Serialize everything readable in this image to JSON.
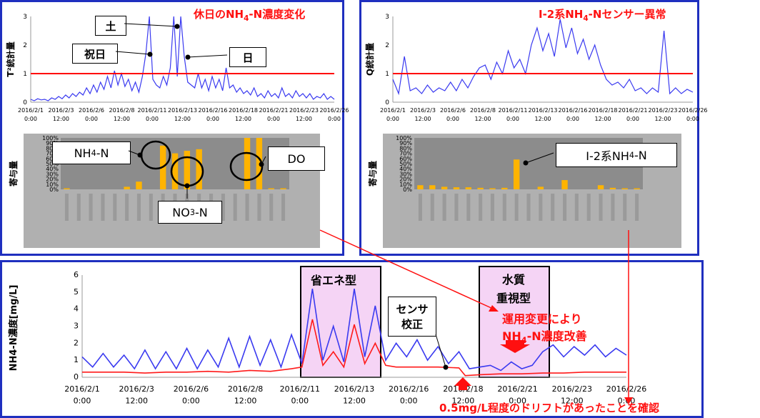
{
  "chart_data": [
    {
      "type": "line",
      "title": "休日のNH4-N濃度変化",
      "ylabel": "T²統計量",
      "ylim": [
        0,
        3
      ],
      "yticks": [
        "0",
        "1",
        "2",
        "3"
      ],
      "x_ticks": [
        "2016/2/1 0:00",
        "2016/2/3 12:00",
        "2016/2/6 0:00",
        "2016/2/8 12:00",
        "2016/2/11 0:00",
        "2016/2/13 12:00",
        "2016/2/16 0:00",
        "2016/2/18 12:00",
        "2016/2/21 0:00",
        "2016/2/23 12:00",
        "2016/2/26 0:00"
      ],
      "threshold": 1,
      "series_color": "#3a3af0",
      "threshold_color": "#ff0000",
      "x": [
        0,
        0.3,
        0.6,
        0.9,
        1.2,
        1.5,
        1.8,
        2.1,
        2.4,
        2.7,
        3.0,
        3.3,
        3.6,
        3.9,
        4.2,
        4.5,
        4.8,
        5.1,
        5.4,
        5.7,
        6.0,
        6.3,
        6.6,
        6.9,
        7.2,
        7.5,
        7.8,
        8.1,
        8.4,
        8.7,
        9.0,
        9.3,
        9.6,
        9.9,
        10.2,
        10.5,
        10.8,
        11.1,
        11.4,
        11.7,
        12.0,
        12.3,
        12.6,
        12.9,
        13.2,
        13.5,
        13.8,
        14.1,
        14.4,
        14.7,
        15.0,
        15.3,
        15.6,
        15.9,
        16.2,
        16.5,
        16.8,
        17.1,
        17.4,
        17.7,
        18.0,
        18.3,
        18.6,
        18.9,
        19.2,
        19.5,
        19.8,
        20.1,
        20.4,
        20.7,
        21.0,
        21.3,
        21.6,
        21.9,
        22.2,
        22.5,
        22.8,
        23.1,
        23.4,
        23.7,
        24.0,
        24.3,
        24.6,
        24.9,
        25.2,
        25.5,
        25.8,
        26.1
      ],
      "values": [
        0.1,
        0.05,
        0.12,
        0.08,
        0.1,
        0.05,
        0.15,
        0.1,
        0.2,
        0.12,
        0.25,
        0.15,
        0.3,
        0.2,
        0.35,
        0.25,
        0.5,
        0.3,
        0.6,
        0.35,
        0.7,
        0.45,
        0.9,
        0.5,
        1.1,
        0.6,
        1.0,
        0.55,
        0.8,
        0.4,
        0.7,
        0.35,
        0.9,
        1.7,
        3.0,
        0.8,
        0.6,
        0.5,
        0.9,
        0.6,
        1.2,
        3.0,
        0.9,
        3.0,
        1.6,
        0.7,
        0.6,
        0.5,
        1.0,
        0.5,
        0.8,
        0.4,
        0.9,
        0.5,
        0.8,
        0.4,
        1.2,
        0.5,
        0.6,
        0.35,
        0.5,
        0.3,
        0.4,
        0.25,
        0.5,
        0.2,
        0.3,
        0.15,
        0.4,
        0.2,
        0.3,
        0.15,
        0.5,
        0.2,
        0.3,
        0.15,
        0.4,
        0.2,
        0.3,
        0.15,
        0.3,
        0.1,
        0.2,
        0.15,
        0.3,
        0.1,
        0.2,
        0.1
      ]
    },
    {
      "type": "line",
      "title": "Ⅰ-2系NH4-Nセンサー異常",
      "ylabel": "Q統計量",
      "ylim": [
        0,
        3
      ],
      "yticks": [
        "0",
        "1",
        "2",
        "3"
      ],
      "x_ticks": [
        "2016/2/1 0:00",
        "2016/2/3 12:00",
        "2016/2/6 0:00",
        "2016/2/8 12:00",
        "2016/2/11 0:00",
        "2016/2/13 12:00",
        "2016/2/16 0:00",
        "2016/2/18 12:00",
        "2016/2/21 0:00",
        "2016/2/23 12:00",
        "2016/2/26 0:00"
      ],
      "threshold": 1,
      "series_color": "#3a3af0",
      "threshold_color": "#ff0000",
      "x": [
        0,
        0.5,
        1.0,
        1.5,
        2.0,
        2.5,
        3.0,
        3.5,
        4.0,
        4.5,
        5.0,
        5.5,
        6.0,
        6.5,
        7.0,
        7.5,
        8.0,
        8.5,
        9.0,
        9.5,
        10.0,
        10.5,
        11.0,
        11.5,
        12.0,
        12.5,
        13.0,
        13.5,
        14.0,
        14.5,
        15.0,
        15.5,
        16.0,
        16.5,
        17.0,
        17.5,
        18.0,
        18.5,
        19.0,
        19.5,
        20.0,
        20.5,
        21.0,
        21.5,
        22.0,
        22.5,
        23.0,
        23.5,
        24.0,
        24.5,
        25.0,
        25.5,
        26.0
      ],
      "values": [
        0.8,
        0.3,
        1.6,
        0.4,
        0.5,
        0.3,
        0.6,
        0.35,
        0.5,
        0.4,
        0.7,
        0.4,
        0.8,
        0.5,
        0.9,
        1.2,
        1.3,
        0.8,
        1.4,
        1.0,
        1.8,
        1.2,
        1.5,
        1.0,
        2.0,
        2.6,
        1.8,
        2.4,
        1.6,
        2.9,
        1.9,
        2.6,
        1.7,
        2.2,
        1.5,
        2.0,
        1.3,
        0.8,
        0.6,
        0.7,
        0.5,
        0.8,
        0.4,
        0.5,
        0.3,
        0.5,
        0.35,
        2.5,
        0.3,
        0.5,
        0.3,
        0.45,
        0.35
      ]
    },
    {
      "type": "bar",
      "ylabel": "寄与量",
      "yticks": [
        "0%",
        "10%",
        "20%",
        "30%",
        "40%",
        "50%",
        "60%",
        "70%",
        "80%",
        "90%",
        "100%"
      ],
      "ylim": [
        0,
        100
      ],
      "color": "#ffb400",
      "values": [
        2,
        0,
        0,
        0,
        0,
        5,
        15,
        0,
        85,
        70,
        75,
        78,
        0,
        0,
        0,
        100,
        100,
        2,
        2
      ]
    },
    {
      "type": "bar",
      "ylabel": "寄与量",
      "yticks": [
        "0%",
        "10%",
        "20%",
        "30%",
        "40%",
        "50%",
        "60%",
        "70%",
        "80%",
        "90%",
        "100%"
      ],
      "ylim": [
        0,
        100
      ],
      "color": "#ffb400",
      "values": [
        8,
        8,
        5,
        4,
        4,
        3,
        2,
        3,
        58,
        0,
        5,
        0,
        18,
        0,
        0,
        8,
        3,
        2,
        2
      ]
    },
    {
      "type": "line",
      "ylabel": "NH4-N濃度[mg/L]",
      "ylim": [
        0,
        6
      ],
      "yticks": [
        "0",
        "1",
        "2",
        "3",
        "4",
        "5",
        "6"
      ],
      "x_ticks": [
        "2016/2/1 0:00",
        "2016/2/3 12:00",
        "2016/2/6 0:00",
        "2016/2/8 12:00",
        "2016/2/11 0:00",
        "2016/2/13 12:00",
        "2016/2/16 0:00",
        "2016/2/18 12:00",
        "2016/2/21 0:00",
        "2016/2/23 12:00",
        "2016/2/26 0:00"
      ],
      "series": [
        {
          "color": "#3a3af0",
          "x": [
            0,
            0.5,
            1.0,
            1.5,
            2.0,
            2.5,
            3.0,
            3.5,
            4.0,
            4.5,
            5.0,
            5.5,
            6.0,
            6.5,
            7.0,
            7.5,
            8.0,
            8.5,
            9.0,
            9.5,
            10.0,
            10.5,
            11.0,
            11.5,
            12.0,
            12.5,
            13.0,
            13.5,
            14.0,
            14.5,
            15.0,
            15.5,
            16.0,
            16.5,
            17.0,
            17.5,
            18.0,
            18.5,
            19.0,
            19.5,
            20.0,
            20.5,
            21.0,
            21.5,
            22.0,
            22.5,
            23.0,
            23.5,
            24.0,
            24.5,
            25.0,
            25.5,
            26.0
          ],
          "values": [
            1.2,
            0.6,
            1.4,
            0.6,
            1.3,
            0.5,
            1.6,
            0.5,
            1.5,
            0.5,
            1.7,
            0.5,
            1.6,
            0.6,
            2.3,
            0.6,
            2.4,
            0.7,
            2.2,
            0.6,
            2.5,
            0.8,
            5.2,
            1.0,
            3.0,
            0.9,
            5.2,
            1.2,
            4.2,
            1.0,
            2.0,
            1.2,
            2.2,
            1.0,
            1.8,
            0.8,
            1.5,
            0.5,
            0.6,
            0.7,
            0.4,
            0.9,
            0.5,
            0.7,
            1.5,
            1.9,
            1.2,
            1.8,
            1.3,
            1.9,
            1.2,
            1.7,
            1.3
          ]
        },
        {
          "color": "#ff1a1a",
          "x": [
            0,
            1,
            2,
            3,
            4,
            5,
            6,
            7,
            8,
            9,
            10,
            10.5,
            11,
            11.5,
            12,
            12.5,
            13,
            13.5,
            14,
            14.5,
            15,
            16,
            17,
            18,
            18.3,
            19,
            20,
            21,
            22,
            23,
            24,
            25,
            26
          ],
          "values": [
            0.3,
            0.3,
            0.3,
            0.25,
            0.3,
            0.3,
            0.35,
            0.3,
            0.4,
            0.35,
            0.5,
            0.6,
            3.4,
            0.7,
            1.5,
            0.6,
            3.1,
            0.8,
            2.0,
            0.7,
            0.6,
            0.6,
            0.6,
            0.55,
            0.1,
            0.15,
            0.2,
            0.2,
            0.25,
            0.25,
            0.3,
            0.3,
            0.3
          ]
        }
      ]
    }
  ],
  "labels": {
    "panel1": {
      "title": "休日のNH4-N濃度変化",
      "do_title_prefix": "休日のNH",
      "do_title_sub": "4",
      "do_title_suffix": "-N濃度変化",
      "sat": "土",
      "holiday": "祝日",
      "sun": "日",
      "nh4": "NH",
      "nh4_sub": "4",
      "nh4_suffix": "-N",
      "no3": "NO",
      "no3_sub": "3",
      "no3_suffix": "-N",
      "do": "DO"
    },
    "panel2": {
      "title_prefix": "Ⅰ-2系NH",
      "title_sub": "4",
      "title_suffix": "-Nセンサー異常",
      "sensor_prefix": "Ⅰ-2系NH",
      "sensor_sub": "4",
      "sensor_suffix": "-N"
    },
    "panel3": {
      "energy_saving": "省エネ型",
      "quality1": "水質",
      "quality2": "重視型",
      "calibration1": "センサ",
      "calibration2": "校正",
      "note1": "運用変更により",
      "note2_prefix": "NH",
      "note2_sub": "4",
      "note2_suffix": "-N濃度改善",
      "drift_note": "0.5mg/L程度のドリフトがあったことを確認"
    }
  }
}
